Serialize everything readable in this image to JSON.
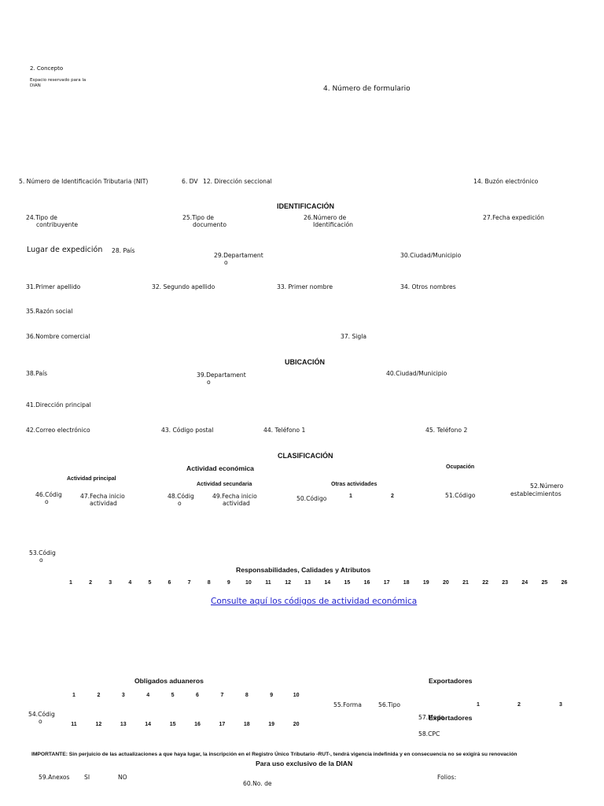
{
  "header": {
    "concepto": "2. Concepto",
    "espacio_1": "Espacio reservado para la",
    "espacio_2": "DIAN",
    "numero_formulario": "4. Número de formulario"
  },
  "nit_row": {
    "nit": "5. Número de Identificación Tributaria (NIT)",
    "dv": "6. DV",
    "direccion_seccional": "12. Dirección seccional",
    "buzon": "14. Buzón electrónico"
  },
  "identificacion": {
    "title": "IDENTIFICACIÓN",
    "tipo_contribuyente_1": "24.Tipo de",
    "tipo_contribuyente_2": "contribuyente",
    "tipo_documento_1": "25.Tipo de",
    "tipo_documento_2": "documento",
    "numero_id_1": "26.Número de",
    "numero_id_2": "Identificación",
    "fecha_expedicion": "27.Fecha expedición",
    "lugar_expedicion": "Lugar de expedición",
    "pais": "28.  País",
    "departamento_1": "29.Departament",
    "departamento_2": "o",
    "ciudad": "30.Ciudad/Municipio",
    "primer_apellido": "31.Primer apellido",
    "segundo_apellido": "32. Segundo apellido",
    "primer_nombre": "33. Primer nombre",
    "otros_nombres": "34. Otros nombres",
    "razon_social": "35.Razón social",
    "nombre_comercial": "36.Nombre comercial",
    "sigla": "37. Sigla"
  },
  "ubicacion": {
    "title": "UBICACIÓN",
    "pais": "38.País",
    "departamento_1": "39.Departament",
    "departamento_2": "o",
    "ciudad": "40.Ciudad/Municipio",
    "direccion": "41.Dirección principal",
    "correo": "42.Correo electrónico",
    "codigo_postal": "43. Código postal",
    "telefono1": "44. Teléfono 1",
    "telefono2": "45. Teléfono 2"
  },
  "clasificacion": {
    "title": "CLASIFICACIÓN",
    "actividad_economica": "Actividad económica",
    "ocupacion": "Ocupación",
    "actividad_principal": "Actividad principal",
    "actividad_secundaria": "Actividad secundaria",
    "otras_actividades": "Otras actividades",
    "codigo46_1": "46.Códig",
    "codigo46_2": "o",
    "fecha47_1": "47.Fecha inicio",
    "fecha47_2": "actividad",
    "codigo48_1": "48.Códig",
    "codigo48_2": "o",
    "fecha49_1": "49.Fecha inicio",
    "fecha49_2": "actividad",
    "codigo50": "50.Código",
    "otras_1": "1",
    "otras_2": "2",
    "codigo51": "51.Código",
    "num_est_1": "52.Número",
    "num_est_2": "establecimientos",
    "codigo53_1": "53.Códig",
    "codigo53_2": "o",
    "responsabilidades": "Responsabilidades, Calidades y Atributos",
    "resp_numbers": [
      "1",
      "2",
      "3",
      "4",
      "5",
      "6",
      "7",
      "8",
      "9",
      "10",
      "11",
      "12",
      "13",
      "14",
      "15",
      "16",
      "17",
      "18",
      "19",
      "20",
      "21",
      "22",
      "23",
      "24",
      "25",
      "26"
    ]
  },
  "link": "Consulte aquí los códigos de actividad económica",
  "aduaneros": {
    "title": "Obligados aduaneros",
    "row1": [
      "1",
      "2",
      "3",
      "4",
      "5",
      "6",
      "7",
      "8",
      "9",
      "10"
    ],
    "row2": [
      "11",
      "12",
      "13",
      "14",
      "15",
      "16",
      "17",
      "18",
      "19",
      "20"
    ],
    "codigo54_1": "54.Códig",
    "codigo54_2": "o"
  },
  "exportadores": {
    "title": "Exportadores",
    "forma": "55.Forma",
    "tipo": "56.Tipo",
    "n1": "1",
    "n2": "2",
    "n3": "3",
    "modo_label": "57.Modo",
    "title_repeat": "Exportadores",
    "cpc": "58.CPC"
  },
  "footer": {
    "importante": "IMPORTANTE: Sin perjuicio de las actualizaciones a que haya lugar, la inscripción en el Registro Único Tributario -RUT-, tendrá vigencia indefinida y en consecuencia no se exigirá su renovación",
    "uso_exclusivo": "Para uso exclusivo de la DIAN",
    "anexos": "59.Anexos",
    "si": "SI",
    "no": "NO",
    "no_de": "60.No. de",
    "folios": "Folios:"
  }
}
